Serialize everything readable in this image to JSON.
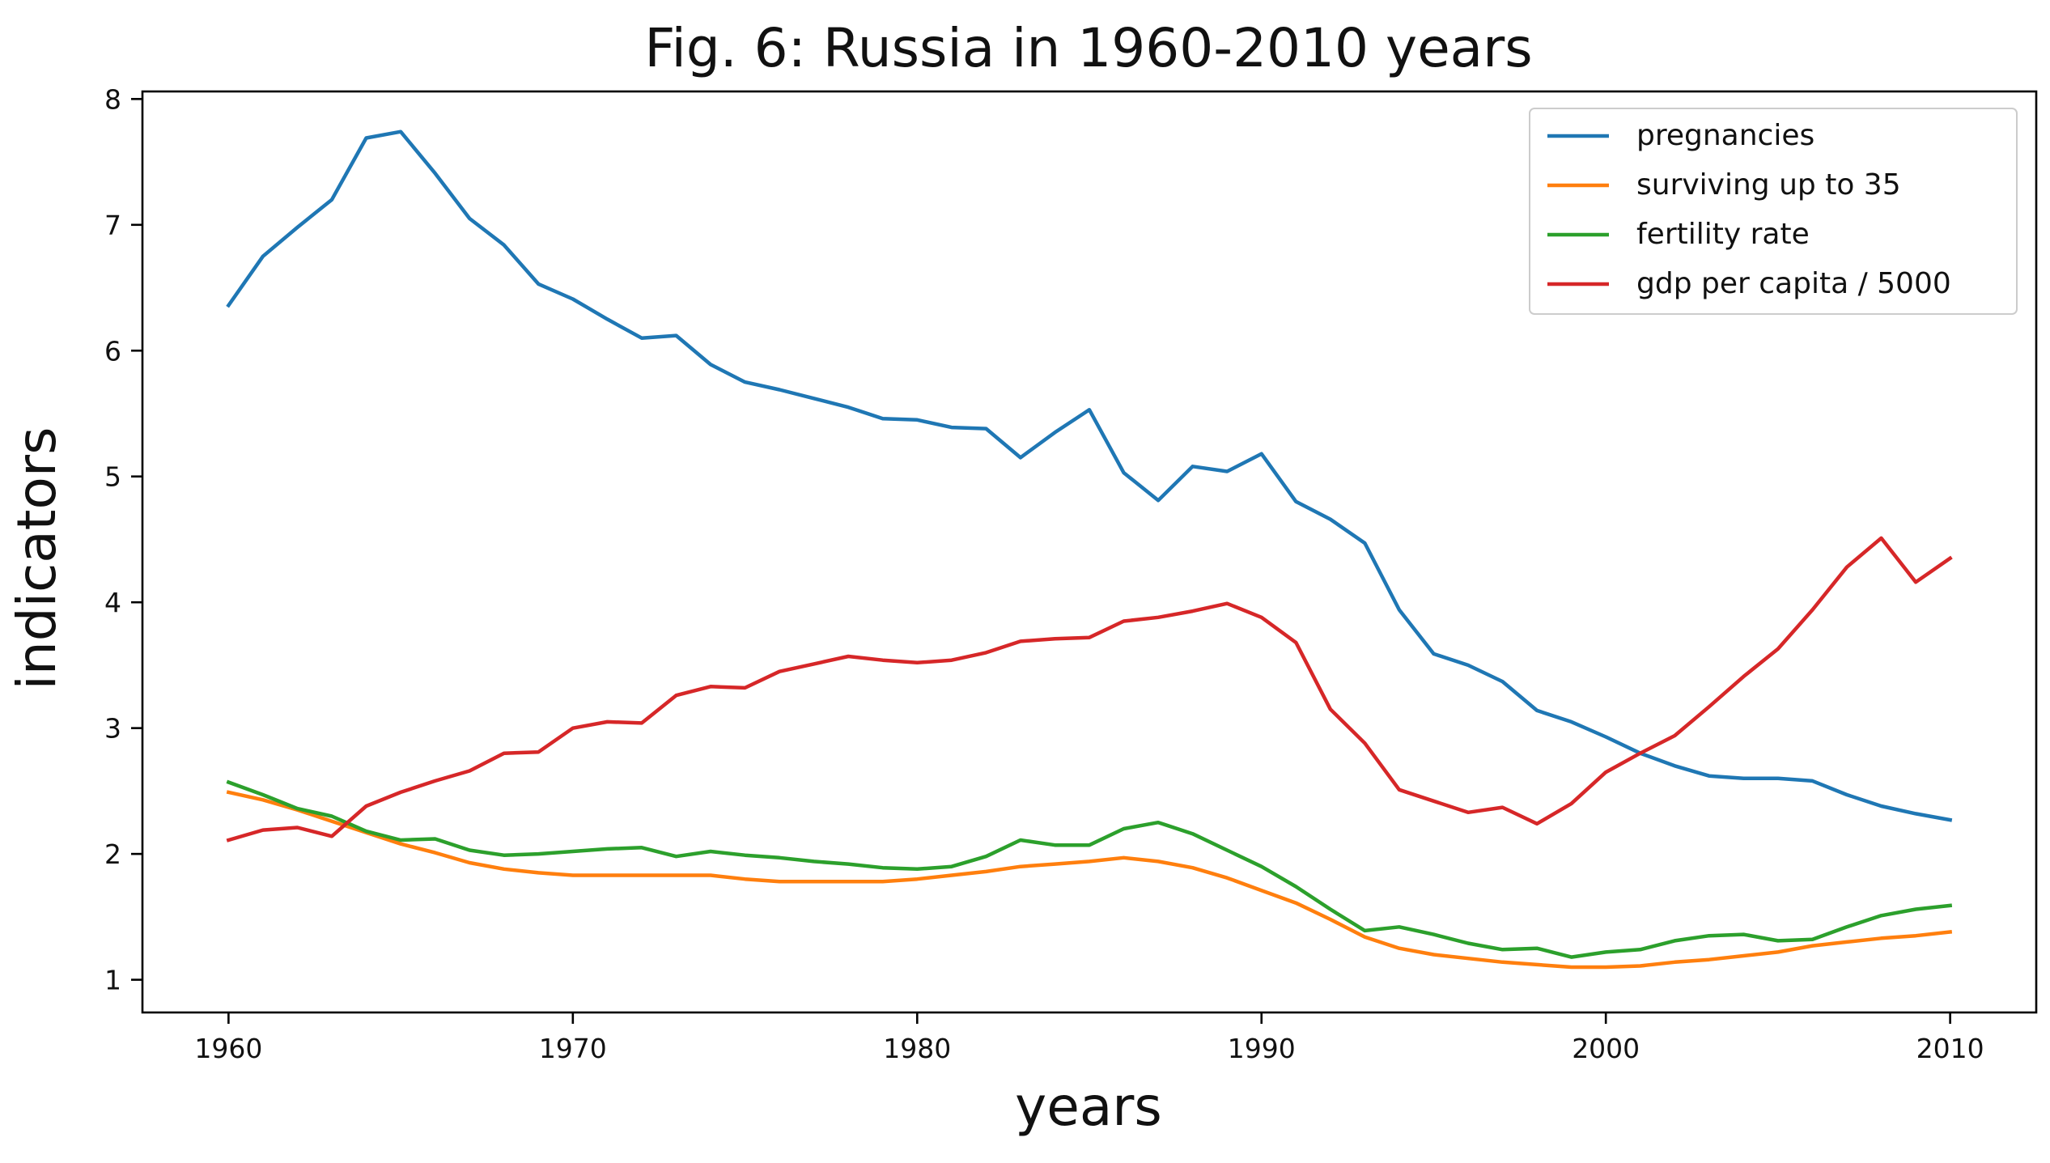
{
  "chart_data": {
    "type": "line",
    "title": "Fig. 6: Russia in 1960-2010 years",
    "xlabel": "years",
    "ylabel": "indicators",
    "xlim": [
      1957.5,
      2012.5
    ],
    "ylim": [
      0.74,
      8.06
    ],
    "xticks": [
      1960,
      1970,
      1980,
      1990,
      2000,
      2010
    ],
    "yticks": [
      1,
      2,
      3,
      4,
      5,
      6,
      7,
      8
    ],
    "grid": false,
    "legend_position": "top-right",
    "x": [
      1960,
      1961,
      1962,
      1963,
      1964,
      1965,
      1966,
      1967,
      1968,
      1969,
      1970,
      1971,
      1972,
      1973,
      1974,
      1975,
      1976,
      1977,
      1978,
      1979,
      1980,
      1981,
      1982,
      1983,
      1984,
      1985,
      1986,
      1987,
      1988,
      1989,
      1990,
      1991,
      1992,
      1993,
      1994,
      1995,
      1996,
      1997,
      1998,
      1999,
      2000,
      2001,
      2002,
      2003,
      2004,
      2005,
      2006,
      2007,
      2008,
      2009,
      2010
    ],
    "series": [
      {
        "name": "pregnancies",
        "color": "#1f77b4",
        "values": [
          6.36,
          6.75,
          6.98,
          7.2,
          7.69,
          7.74,
          7.41,
          7.05,
          6.84,
          6.53,
          6.41,
          6.25,
          6.1,
          6.12,
          5.89,
          5.75,
          5.69,
          5.62,
          5.55,
          5.46,
          5.45,
          5.39,
          5.38,
          5.15,
          5.35,
          5.53,
          5.03,
          4.81,
          5.08,
          5.04,
          5.18,
          4.8,
          4.66,
          4.47,
          3.94,
          3.59,
          3.5,
          3.37,
          3.14,
          3.05,
          2.93,
          2.8,
          2.7,
          2.62,
          2.6,
          2.6,
          2.58,
          2.47,
          2.38,
          2.32,
          2.27
        ]
      },
      {
        "name": "surviving up to 35",
        "color": "#ff7f0e",
        "values": [
          2.49,
          2.43,
          2.35,
          2.26,
          2.17,
          2.08,
          2.01,
          1.93,
          1.88,
          1.85,
          1.83,
          1.83,
          1.83,
          1.83,
          1.83,
          1.8,
          1.78,
          1.78,
          1.78,
          1.78,
          1.8,
          1.83,
          1.86,
          1.9,
          1.92,
          1.94,
          1.97,
          1.94,
          1.89,
          1.81,
          1.71,
          1.61,
          1.48,
          1.34,
          1.25,
          1.2,
          1.17,
          1.14,
          1.12,
          1.1,
          1.1,
          1.11,
          1.14,
          1.16,
          1.19,
          1.22,
          1.27,
          1.3,
          1.33,
          1.35,
          1.38
        ]
      },
      {
        "name": "fertility rate",
        "color": "#2ca02c",
        "values": [
          2.57,
          2.47,
          2.36,
          2.3,
          2.18,
          2.11,
          2.12,
          2.03,
          1.99,
          2.0,
          2.02,
          2.04,
          2.05,
          1.98,
          2.02,
          1.99,
          1.97,
          1.94,
          1.92,
          1.89,
          1.88,
          1.9,
          1.98,
          2.11,
          2.07,
          2.07,
          2.2,
          2.25,
          2.16,
          2.03,
          1.9,
          1.74,
          1.56,
          1.39,
          1.42,
          1.36,
          1.29,
          1.24,
          1.25,
          1.18,
          1.22,
          1.24,
          1.31,
          1.35,
          1.36,
          1.31,
          1.32,
          1.42,
          1.51,
          1.56,
          1.59
        ]
      },
      {
        "name": "gdp per capita / 5000",
        "color": "#d62728",
        "values": [
          2.11,
          2.19,
          2.21,
          2.14,
          2.38,
          2.49,
          2.58,
          2.66,
          2.8,
          2.81,
          3.0,
          3.05,
          3.04,
          3.26,
          3.33,
          3.32,
          3.45,
          3.51,
          3.57,
          3.54,
          3.52,
          3.54,
          3.6,
          3.69,
          3.71,
          3.72,
          3.85,
          3.88,
          3.93,
          3.99,
          3.88,
          3.68,
          3.15,
          2.88,
          2.51,
          2.42,
          2.33,
          2.37,
          2.24,
          2.4,
          2.65,
          2.8,
          2.94,
          3.17,
          3.41,
          3.63,
          3.94,
          4.28,
          4.51,
          4.16,
          4.35
        ]
      }
    ]
  }
}
